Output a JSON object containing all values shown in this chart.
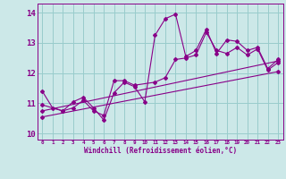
{
  "xlabel": "Windchill (Refroidissement éolien,°C)",
  "bg_color": "#cce8e8",
  "grid_color": "#99cccc",
  "line_color": "#880088",
  "marker": "D",
  "markersize": 2.0,
  "linewidth": 0.8,
  "xlim": [
    -0.5,
    23.5
  ],
  "ylim": [
    9.8,
    14.3
  ],
  "yticks": [
    10,
    11,
    12,
    13,
    14
  ],
  "xticks": [
    0,
    1,
    2,
    3,
    4,
    5,
    6,
    7,
    8,
    9,
    10,
    11,
    12,
    13,
    14,
    15,
    16,
    17,
    18,
    19,
    20,
    21,
    22,
    23
  ],
  "series": [
    {
      "x": [
        0,
        1,
        2,
        3,
        4,
        5,
        6,
        7,
        8,
        9,
        10,
        11,
        12,
        13,
        14,
        15,
        16,
        17,
        18,
        19,
        20,
        21,
        22,
        23
      ],
      "y": [
        11.4,
        10.85,
        10.75,
        11.05,
        11.2,
        10.85,
        10.45,
        11.35,
        11.7,
        11.55,
        11.05,
        13.25,
        13.8,
        13.95,
        12.55,
        12.75,
        13.45,
        12.65,
        13.1,
        13.05,
        12.75,
        12.85,
        12.15,
        12.45
      ]
    },
    {
      "x": [
        0,
        2,
        3,
        4,
        5,
        6,
        7,
        8,
        9,
        11,
        12,
        13,
        14,
        15,
        16,
        17,
        18,
        19,
        20,
        21,
        22,
        23
      ],
      "y": [
        10.95,
        10.75,
        10.85,
        11.1,
        10.75,
        10.6,
        11.75,
        11.75,
        11.6,
        11.7,
        11.85,
        12.45,
        12.5,
        12.6,
        13.35,
        12.75,
        12.65,
        12.85,
        12.6,
        12.8,
        12.1,
        12.35
      ]
    },
    {
      "x": [
        0,
        23
      ],
      "y": [
        10.75,
        12.4
      ]
    },
    {
      "x": [
        0,
        23
      ],
      "y": [
        10.55,
        12.05
      ]
    }
  ]
}
